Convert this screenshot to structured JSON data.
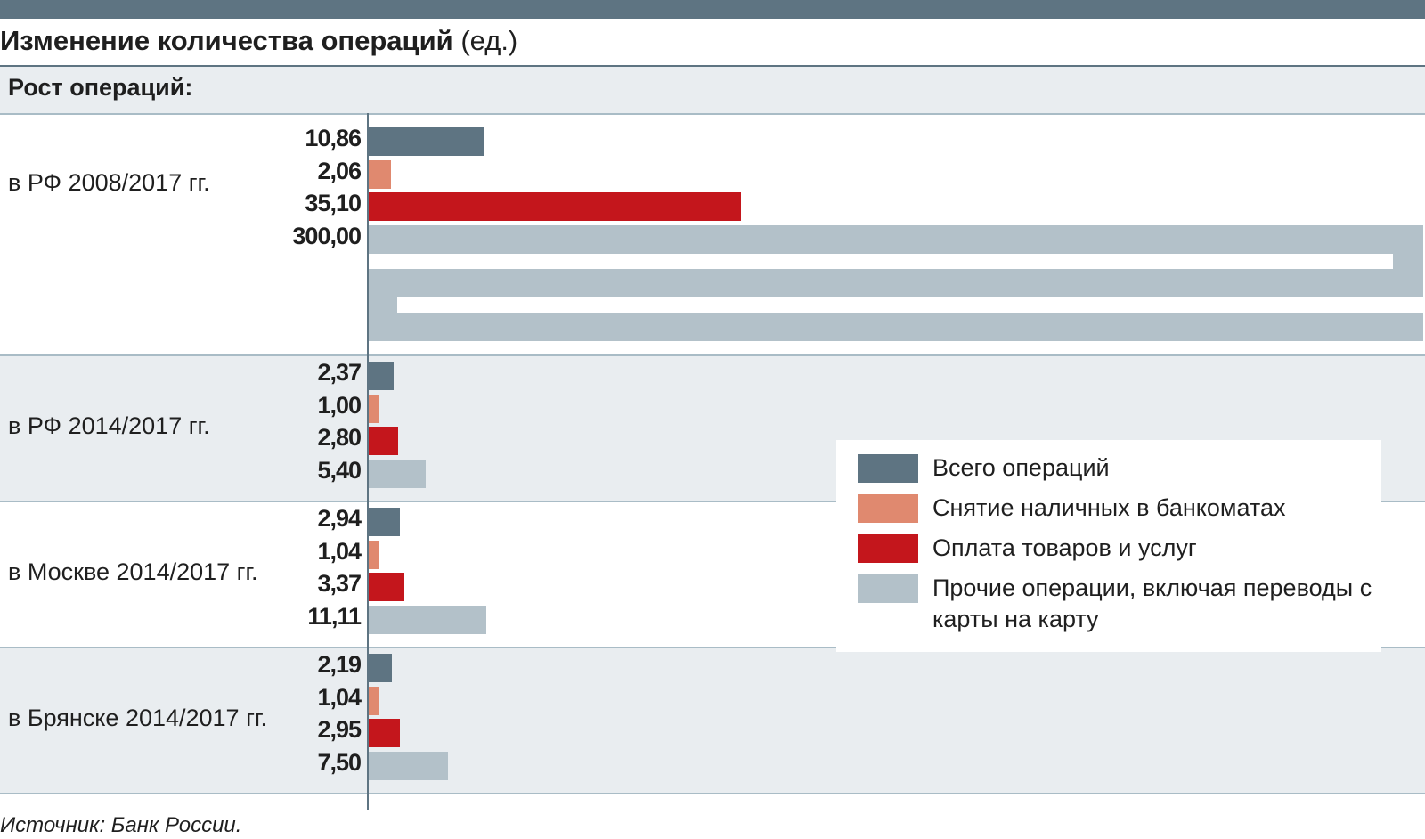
{
  "title": {
    "main": "Изменение количества операций",
    "unit": "(ед.)"
  },
  "subhead": "Рост операций:",
  "source": "Источник: Банк России.",
  "colors": {
    "total": "#5e7482",
    "cash": "#e0896f",
    "payment": "#c4161c",
    "other": "#b3c1c9",
    "band_fill": "#e9edf0"
  },
  "chart_data": {
    "type": "bar",
    "orientation": "horizontal",
    "categories": [
      "в РФ 2008/2017 гг.",
      "в РФ 2014/2017 гг.",
      "в Москве 2014/2017 гг.",
      "в Брянске 2014/2017 гг."
    ],
    "series": [
      {
        "name": "Всего операций",
        "values": [
          10.86,
          2.37,
          2.94,
          2.19
        ],
        "labels": [
          "10,86",
          "2,37",
          "2,94",
          "2,19"
        ]
      },
      {
        "name": "Снятие наличных в банкоматах",
        "values": [
          2.06,
          1.0,
          1.04,
          1.04
        ],
        "labels": [
          "2,06",
          "1,00",
          "1,04",
          "1,04"
        ]
      },
      {
        "name": "Оплата товаров и услуг",
        "values": [
          35.1,
          2.8,
          3.37,
          2.95
        ],
        "labels": [
          "35,10",
          "2,80",
          "3,37",
          "2,95"
        ]
      },
      {
        "name": "Прочие операции, включая переводы с карты на карту",
        "values": [
          300.0,
          5.4,
          11.11,
          7.5
        ],
        "labels": [
          "300,00",
          "5,40",
          "11,11",
          "7,50"
        ]
      }
    ],
    "legend": [
      {
        "label": "Всего операций",
        "color": "#5e7482"
      },
      {
        "label": "Снятие наличных в банкоматах",
        "color": "#e0896f"
      },
      {
        "label": "Оплата товаров и услуг",
        "color": "#c4161c"
      },
      {
        "label": "Прочие операции, включая переводы с карты на карту",
        "color": "#b3c1c9"
      }
    ],
    "legend_position": "right",
    "xlim": [
      0,
      300
    ],
    "grid": false
  }
}
